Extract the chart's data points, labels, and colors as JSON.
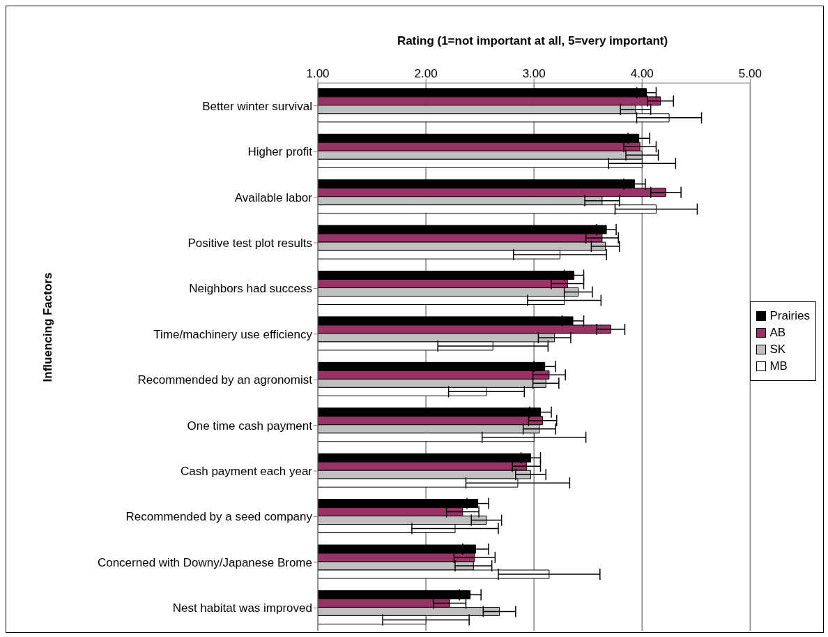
{
  "chart_data": {
    "type": "bar",
    "orientation": "horizontal",
    "xlabel": "Rating (1=not important at all, 5=very important)",
    "ylabel": "Influencing Factors",
    "categories": [
      "Better winter survival",
      "Higher profit",
      "Available labor",
      "Positive test plot results",
      "Neighbors had success",
      "Time/machinery use efficiency",
      "Recommended by an agronomist",
      "One time cash payment",
      "Cash payment each year",
      "Recommended by a seed company",
      "Concerned with Downy/Japanese Brome",
      "Nest habitat was improved"
    ],
    "series": [
      {
        "name": "Prairies",
        "color": "#000000",
        "values": [
          4.04,
          3.97,
          3.93,
          3.67,
          3.37,
          3.36,
          3.1,
          3.06,
          2.97,
          2.48,
          2.46,
          2.41
        ],
        "errors": [
          0.09,
          0.1,
          0.1,
          0.09,
          0.09,
          0.1,
          0.1,
          0.1,
          0.09,
          0.1,
          0.12,
          0.1
        ]
      },
      {
        "name": "AB",
        "color": "#993366",
        "values": [
          4.17,
          3.98,
          4.22,
          3.63,
          3.31,
          3.71,
          3.14,
          3.08,
          2.93,
          2.34,
          2.45,
          2.22
        ],
        "errors": [
          0.12,
          0.15,
          0.14,
          0.15,
          0.15,
          0.13,
          0.15,
          0.13,
          0.13,
          0.15,
          0.19,
          0.15
        ]
      },
      {
        "name": "SK",
        "color": "#c0c0c0",
        "values": [
          3.94,
          4.0,
          3.63,
          3.66,
          3.41,
          3.19,
          3.11,
          3.05,
          2.97,
          2.56,
          2.44,
          2.68
        ],
        "errors": [
          0.14,
          0.15,
          0.16,
          0.13,
          0.13,
          0.15,
          0.12,
          0.15,
          0.14,
          0.14,
          0.17,
          0.15
        ]
      },
      {
        "name": "MB",
        "color": "#ffffff",
        "values": [
          4.25,
          4.0,
          4.13,
          3.24,
          3.28,
          2.62,
          2.56,
          3.0,
          2.85,
          2.27,
          3.14,
          2.0
        ],
        "errors": [
          0.3,
          0.31,
          0.38,
          0.43,
          0.34,
          0.51,
          0.35,
          0.48,
          0.48,
          0.4,
          0.47,
          0.4
        ]
      }
    ],
    "xlim": [
      1,
      5
    ],
    "xticks": [
      {
        "value": 1,
        "label": "1.00"
      },
      {
        "value": 2,
        "label": "2.00"
      },
      {
        "value": 3,
        "label": "3.00"
      },
      {
        "value": 4,
        "label": "4.00"
      },
      {
        "value": 5,
        "label": "5.00"
      }
    ],
    "grid": "x",
    "legend": "right"
  }
}
